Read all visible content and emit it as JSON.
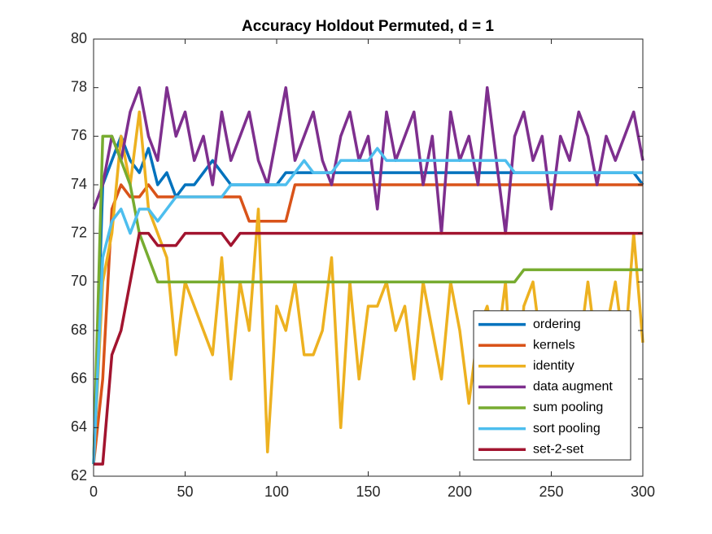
{
  "chart_data": {
    "type": "line",
    "title": "Accuracy Holdout Permuted, d = 1",
    "x": [
      0,
      5,
      10,
      15,
      20,
      25,
      30,
      35,
      40,
      45,
      50,
      55,
      60,
      65,
      70,
      75,
      80,
      85,
      90,
      95,
      100,
      105,
      110,
      115,
      120,
      125,
      130,
      135,
      140,
      145,
      150,
      155,
      160,
      165,
      170,
      175,
      180,
      185,
      190,
      195,
      200,
      205,
      210,
      215,
      220,
      225,
      230,
      235,
      240,
      245,
      250,
      255,
      260,
      265,
      270,
      275,
      280,
      285,
      290,
      295,
      300
    ],
    "xlim": [
      0,
      300
    ],
    "xticks": [
      0,
      50,
      100,
      150,
      200,
      250,
      300
    ],
    "ylim": [
      62,
      80
    ],
    "yticks": [
      62,
      64,
      66,
      68,
      70,
      72,
      74,
      76,
      78,
      80
    ],
    "legend": "lower right",
    "series": [
      {
        "name": "ordering",
        "color": "#0072BD",
        "values": [
          62.5,
          74,
          75,
          76,
          75,
          74.5,
          75.5,
          74,
          74.5,
          73.5,
          74,
          74,
          74.5,
          75,
          74.5,
          74,
          74,
          74,
          74,
          74,
          74,
          74.5,
          74.5,
          74.5,
          74.5,
          74.5,
          74.5,
          74.5,
          74.5,
          74.5,
          74.5,
          74.5,
          74.5,
          74.5,
          74.5,
          74.5,
          74.5,
          74.5,
          74.5,
          74.5,
          74.5,
          74.5,
          74.5,
          74.5,
          74.5,
          74.5,
          74.5,
          74.5,
          74.5,
          74.5,
          74.5,
          74.5,
          74.5,
          74.5,
          74.5,
          74.5,
          74.5,
          74.5,
          74.5,
          74.5,
          74
        ]
      },
      {
        "name": "kernels",
        "color": "#D95319",
        "values": [
          62.5,
          66,
          73,
          74,
          73.5,
          73.5,
          74,
          73.5,
          73.5,
          73.5,
          73.5,
          73.5,
          73.5,
          73.5,
          73.5,
          73.5,
          73.5,
          72.5,
          72.5,
          72.5,
          72.5,
          72.5,
          74,
          74,
          74,
          74,
          74,
          74,
          74,
          74,
          74,
          74,
          74,
          74,
          74,
          74,
          74,
          74,
          74,
          74,
          74,
          74,
          74,
          74,
          74,
          74,
          74,
          74,
          74,
          74,
          74,
          74,
          74,
          74,
          74,
          74,
          74,
          74,
          74,
          74,
          74
        ]
      },
      {
        "name": "identity",
        "color": "#EDB120",
        "values": [
          62.5,
          70,
          72,
          76,
          74,
          77,
          73,
          72,
          71,
          67,
          70,
          69,
          68,
          67,
          71,
          66,
          70,
          68,
          73,
          63,
          69,
          68,
          70,
          67,
          67,
          68,
          71,
          64,
          70,
          66,
          69,
          69,
          70,
          68,
          69,
          66,
          70,
          68,
          66,
          70,
          68,
          65,
          68,
          69,
          67,
          70,
          64,
          69,
          70,
          67,
          66,
          68,
          68,
          67,
          70,
          67,
          68,
          70,
          67,
          72,
          67.5
        ]
      },
      {
        "name": "data augment",
        "color": "#7E2F8E",
        "values": [
          73,
          74,
          76,
          75,
          77,
          78,
          76,
          75,
          78,
          76,
          77,
          75,
          76,
          74,
          77,
          75,
          76,
          77,
          75,
          74,
          76,
          78,
          75,
          76,
          77,
          75,
          74,
          76,
          77,
          75,
          76,
          73,
          77,
          75,
          76,
          77,
          74,
          76,
          72,
          77,
          75,
          76,
          74,
          78,
          75,
          72,
          76,
          77,
          75,
          76,
          73,
          76,
          75,
          77,
          76,
          74,
          76,
          75,
          76,
          77,
          75
        ]
      },
      {
        "name": "sum pooling",
        "color": "#77AC30",
        "values": [
          62.5,
          76,
          76,
          75,
          74,
          72,
          71,
          70,
          70,
          70,
          70,
          70,
          70,
          70,
          70,
          70,
          70,
          70,
          70,
          70,
          70,
          70,
          70,
          70,
          70,
          70,
          70,
          70,
          70,
          70,
          70,
          70,
          70,
          70,
          70,
          70,
          70,
          70,
          70,
          70,
          70,
          70,
          70,
          70,
          70,
          70,
          70,
          70.5,
          70.5,
          70.5,
          70.5,
          70.5,
          70.5,
          70.5,
          70.5,
          70.5,
          70.5,
          70.5,
          70.5,
          70.5,
          70.5
        ]
      },
      {
        "name": "sort pooling",
        "color": "#4DBEEE",
        "values": [
          62.5,
          71,
          72.5,
          73,
          72,
          73,
          73,
          72.5,
          73,
          73.5,
          73.5,
          73.5,
          73.5,
          73.5,
          73.5,
          74,
          74,
          74,
          74,
          74,
          74,
          74,
          74.5,
          75,
          74.5,
          74.5,
          74.5,
          75,
          75,
          75,
          75,
          75.5,
          75,
          75,
          75,
          75,
          75,
          75,
          75,
          75,
          75,
          75,
          75,
          75,
          75,
          75,
          74.5,
          74.5,
          74.5,
          74.5,
          74.5,
          74.5,
          74.5,
          74.5,
          74.5,
          74.5,
          74.5,
          74.5,
          74.5,
          74.5,
          74.5
        ]
      },
      {
        "name": "set-2-set",
        "color": "#A2142F",
        "values": [
          62.5,
          62.5,
          67,
          68,
          70,
          72,
          72,
          71.5,
          71.5,
          71.5,
          72,
          72,
          72,
          72,
          72,
          71.5,
          72,
          72,
          72,
          72,
          72,
          72,
          72,
          72,
          72,
          72,
          72,
          72,
          72,
          72,
          72,
          72,
          72,
          72,
          72,
          72,
          72,
          72,
          72,
          72,
          72,
          72,
          72,
          72,
          72,
          72,
          72,
          72,
          72,
          72,
          72,
          72,
          72,
          72,
          72,
          72,
          72,
          72,
          72,
          72,
          72
        ]
      }
    ]
  }
}
